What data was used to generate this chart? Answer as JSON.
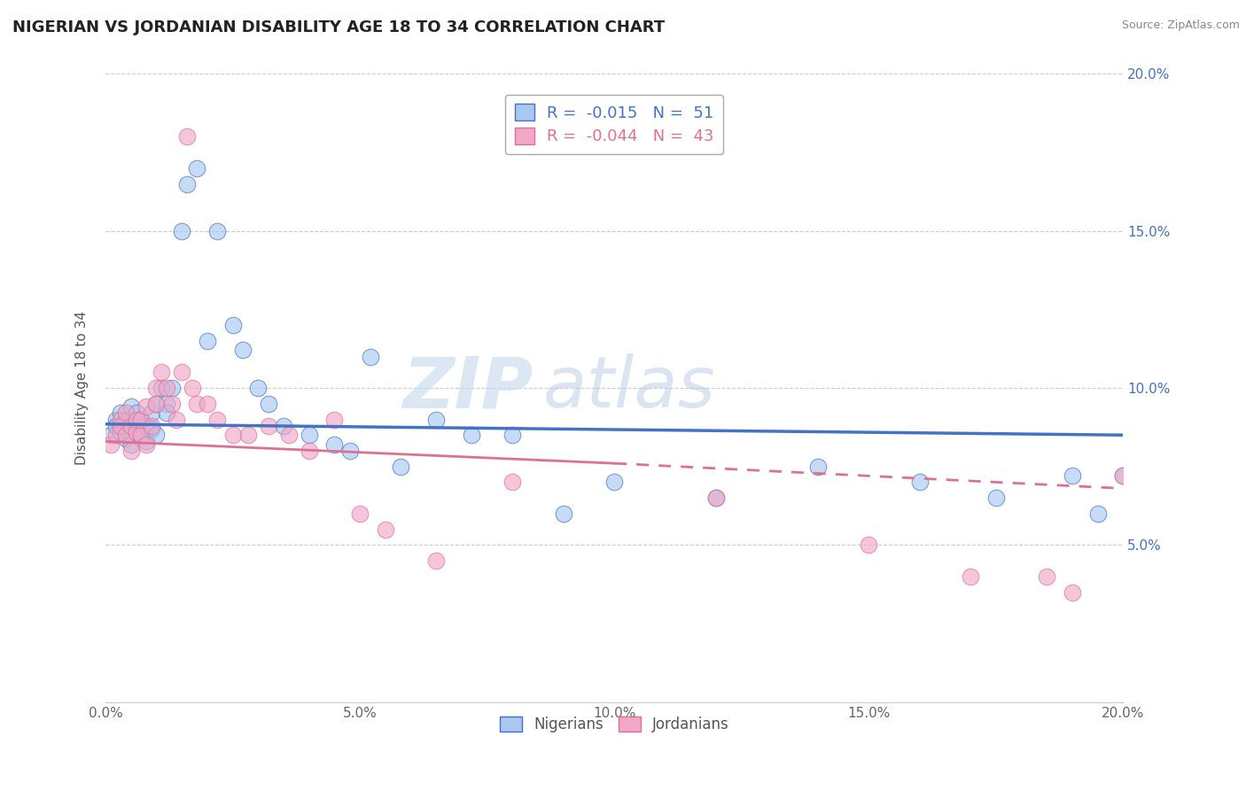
{
  "title": "NIGERIAN VS JORDANIAN DISABILITY AGE 18 TO 34 CORRELATION CHART",
  "source": "Source: ZipAtlas.com",
  "ylabel": "Disability Age 18 to 34",
  "xmin": 0.0,
  "xmax": 0.2,
  "ymin": 0.0,
  "ymax": 0.2,
  "legend_labels": [
    "Nigerians",
    "Jordanians"
  ],
  "nigerian_R": "-0.015",
  "nigerian_N": "51",
  "jordanian_R": "-0.044",
  "jordanian_N": "43",
  "nigerian_color": "#a8c8f0",
  "jordanian_color": "#f0a8c8",
  "nigerian_line_color": "#4472c4",
  "jordanian_line_color": "#e07090",
  "background_color": "#ffffff",
  "watermark_zip": "ZIP",
  "watermark_atlas": "atlas",
  "nigerian_x": [
    0.001,
    0.002,
    0.002,
    0.003,
    0.003,
    0.004,
    0.004,
    0.005,
    0.005,
    0.005,
    0.006,
    0.006,
    0.007,
    0.007,
    0.008,
    0.008,
    0.009,
    0.009,
    0.01,
    0.01,
    0.011,
    0.012,
    0.012,
    0.013,
    0.015,
    0.016,
    0.018,
    0.02,
    0.022,
    0.025,
    0.027,
    0.03,
    0.032,
    0.035,
    0.04,
    0.045,
    0.048,
    0.052,
    0.058,
    0.065,
    0.072,
    0.08,
    0.09,
    0.1,
    0.12,
    0.14,
    0.16,
    0.175,
    0.19,
    0.195,
    0.2
  ],
  "nigerian_y": [
    0.085,
    0.09,
    0.088,
    0.086,
    0.092,
    0.084,
    0.09,
    0.088,
    0.082,
    0.094,
    0.086,
    0.092,
    0.085,
    0.09,
    0.088,
    0.083,
    0.092,
    0.087,
    0.095,
    0.085,
    0.1,
    0.095,
    0.092,
    0.1,
    0.15,
    0.165,
    0.17,
    0.115,
    0.15,
    0.12,
    0.112,
    0.1,
    0.095,
    0.088,
    0.085,
    0.082,
    0.08,
    0.11,
    0.075,
    0.09,
    0.085,
    0.085,
    0.06,
    0.07,
    0.065,
    0.075,
    0.07,
    0.065,
    0.072,
    0.06,
    0.072
  ],
  "jordanian_x": [
    0.001,
    0.002,
    0.003,
    0.003,
    0.004,
    0.004,
    0.005,
    0.005,
    0.006,
    0.006,
    0.007,
    0.007,
    0.008,
    0.008,
    0.009,
    0.01,
    0.01,
    0.011,
    0.012,
    0.013,
    0.014,
    0.015,
    0.016,
    0.017,
    0.018,
    0.02,
    0.022,
    0.025,
    0.028,
    0.032,
    0.036,
    0.04,
    0.045,
    0.05,
    0.055,
    0.065,
    0.08,
    0.12,
    0.15,
    0.17,
    0.185,
    0.19,
    0.2
  ],
  "jordanian_y": [
    0.082,
    0.085,
    0.09,
    0.088,
    0.085,
    0.092,
    0.088,
    0.08,
    0.086,
    0.09,
    0.085,
    0.09,
    0.094,
    0.082,
    0.088,
    0.095,
    0.1,
    0.105,
    0.1,
    0.095,
    0.09,
    0.105,
    0.18,
    0.1,
    0.095,
    0.095,
    0.09,
    0.085,
    0.085,
    0.088,
    0.085,
    0.08,
    0.09,
    0.06,
    0.055,
    0.045,
    0.07,
    0.065,
    0.05,
    0.04,
    0.04,
    0.035,
    0.072
  ],
  "nig_trend_start_y": 0.088,
  "nig_trend_end_y": 0.086,
  "jor_trend_x0": 0.0,
  "jor_trend_y0": 0.082,
  "jor_trend_x1": 0.12,
  "jor_trend_y1": 0.072,
  "jor_trend_dash_x0": 0.12,
  "jor_trend_dash_y0": 0.072,
  "jor_trend_dash_x1": 0.2,
  "jor_trend_dash_y1": 0.066
}
